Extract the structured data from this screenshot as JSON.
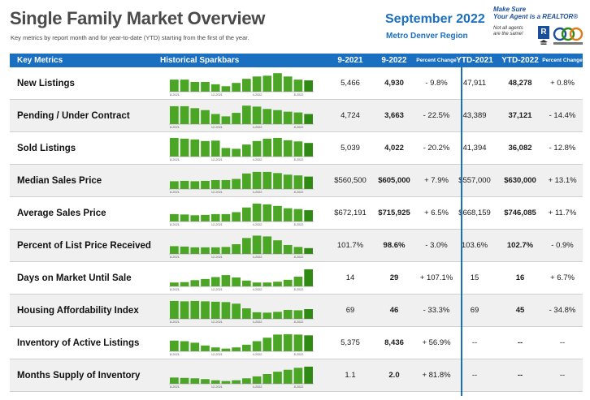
{
  "header": {
    "title": "Single Family Market Overview",
    "subtitle": "Key metrics by report month and for year-to-date (YTD) starting from the first of the year.",
    "month": "September 2022",
    "region": "Metro Denver Region"
  },
  "brand": {
    "line1": "Make Sure",
    "line2": "Your Agent is a REALTOR®",
    "line3": "Not all agents",
    "line4": "are the same!",
    "r_mark": "R"
  },
  "columns": {
    "metric": "Key Metrics",
    "spark": "Historical Sparkbars",
    "m1": "9-2021",
    "m2": "9-2022",
    "pc": "Percent Change",
    "y1": "YTD-2021",
    "y2": "YTD-2022",
    "ypc": "Percent Change"
  },
  "spark_ticks": [
    "8-2021",
    "12-2021",
    "4-2022",
    "8-2022"
  ],
  "colors": {
    "header_blue": "#1b6fc0",
    "bar_green": "#4aa624",
    "bar_dark": "#2e8a12"
  },
  "rows": [
    {
      "metric": "New Listings",
      "m1": "5,466",
      "m2": "4,930",
      "pc": "- 9.8%",
      "y1": "47,911",
      "y2": "48,278",
      "ypc": "+ 0.8%",
      "spark": [
        62,
        62,
        50,
        50,
        38,
        28,
        45,
        66,
        78,
        82,
        95,
        78,
        62,
        58
      ]
    },
    {
      "metric": "Pending / Under Contract",
      "m1": "4,724",
      "m2": "3,663",
      "pc": "- 22.5%",
      "y1": "43,389",
      "y2": "37,121",
      "ypc": "- 14.4%",
      "spark": [
        92,
        92,
        82,
        72,
        52,
        40,
        58,
        95,
        90,
        78,
        72,
        64,
        60,
        52
      ]
    },
    {
      "metric": "Sold Listings",
      "m1": "5,039",
      "m2": "4,022",
      "pc": "- 20.2%",
      "y1": "41,394",
      "y2": "36,082",
      "ypc": "- 12.8%",
      "spark": [
        96,
        92,
        88,
        80,
        82,
        44,
        40,
        62,
        80,
        92,
        96,
        84,
        78,
        70
      ]
    },
    {
      "metric": "Median Sales Price",
      "m1": "$560,500",
      "m2": "$605,000",
      "pc": "+ 7.9%",
      "y1": "$557,000",
      "y2": "$630,000",
      "ypc": "+ 13.1%",
      "spark": [
        40,
        42,
        40,
        42,
        46,
        46,
        52,
        80,
        88,
        88,
        82,
        74,
        70,
        64
      ]
    },
    {
      "metric": "Average Sales Price",
      "m1": "$672,191",
      "m2": "$715,925",
      "pc": "+ 6.5%",
      "y1": "$668,159",
      "y2": "$746,085",
      "ypc": "+ 11.7%",
      "spark": [
        38,
        36,
        32,
        34,
        38,
        38,
        48,
        72,
        92,
        88,
        80,
        68,
        64,
        58
      ]
    },
    {
      "metric": "Percent of List Price Received",
      "m1": "101.7%",
      "m2": "98.6%",
      "pc": "- 3.0%",
      "y1": "103.6%",
      "y2": "102.7%",
      "ypc": "- 0.9%",
      "spark": [
        40,
        38,
        34,
        34,
        34,
        36,
        50,
        82,
        94,
        90,
        70,
        46,
        36,
        30
      ]
    },
    {
      "metric": "Days on Market Until Sale",
      "m1": "14",
      "m2": "29",
      "pc": "+ 107.1%",
      "y1": "15",
      "y2": "16",
      "ypc": "+ 6.7%",
      "spark": [
        20,
        22,
        32,
        38,
        48,
        58,
        46,
        30,
        20,
        20,
        24,
        34,
        50,
        88
      ]
    },
    {
      "metric": "Housing Affordability Index",
      "m1": "69",
      "m2": "46",
      "pc": "- 33.3%",
      "y1": "69",
      "y2": "45",
      "ypc": "- 34.8%",
      "spark": [
        92,
        90,
        92,
        90,
        88,
        86,
        78,
        54,
        34,
        32,
        36,
        46,
        44,
        50
      ]
    },
    {
      "metric": "Inventory of Active Listings",
      "m1": "5,375",
      "m2": "8,436",
      "pc": "+ 56.9%",
      "y1": "--",
      "y2": "--",
      "ypc": "--",
      "spark": [
        55,
        52,
        44,
        30,
        20,
        14,
        20,
        34,
        52,
        70,
        86,
        88,
        86,
        82
      ]
    },
    {
      "metric": "Months Supply of Inventory",
      "m1": "1.1",
      "m2": "2.0",
      "pc": "+ 81.8%",
      "y1": "--",
      "y2": "--",
      "ypc": "--",
      "spark": [
        32,
        30,
        28,
        24,
        18,
        14,
        18,
        28,
        38,
        50,
        62,
        72,
        82,
        88
      ]
    }
  ]
}
